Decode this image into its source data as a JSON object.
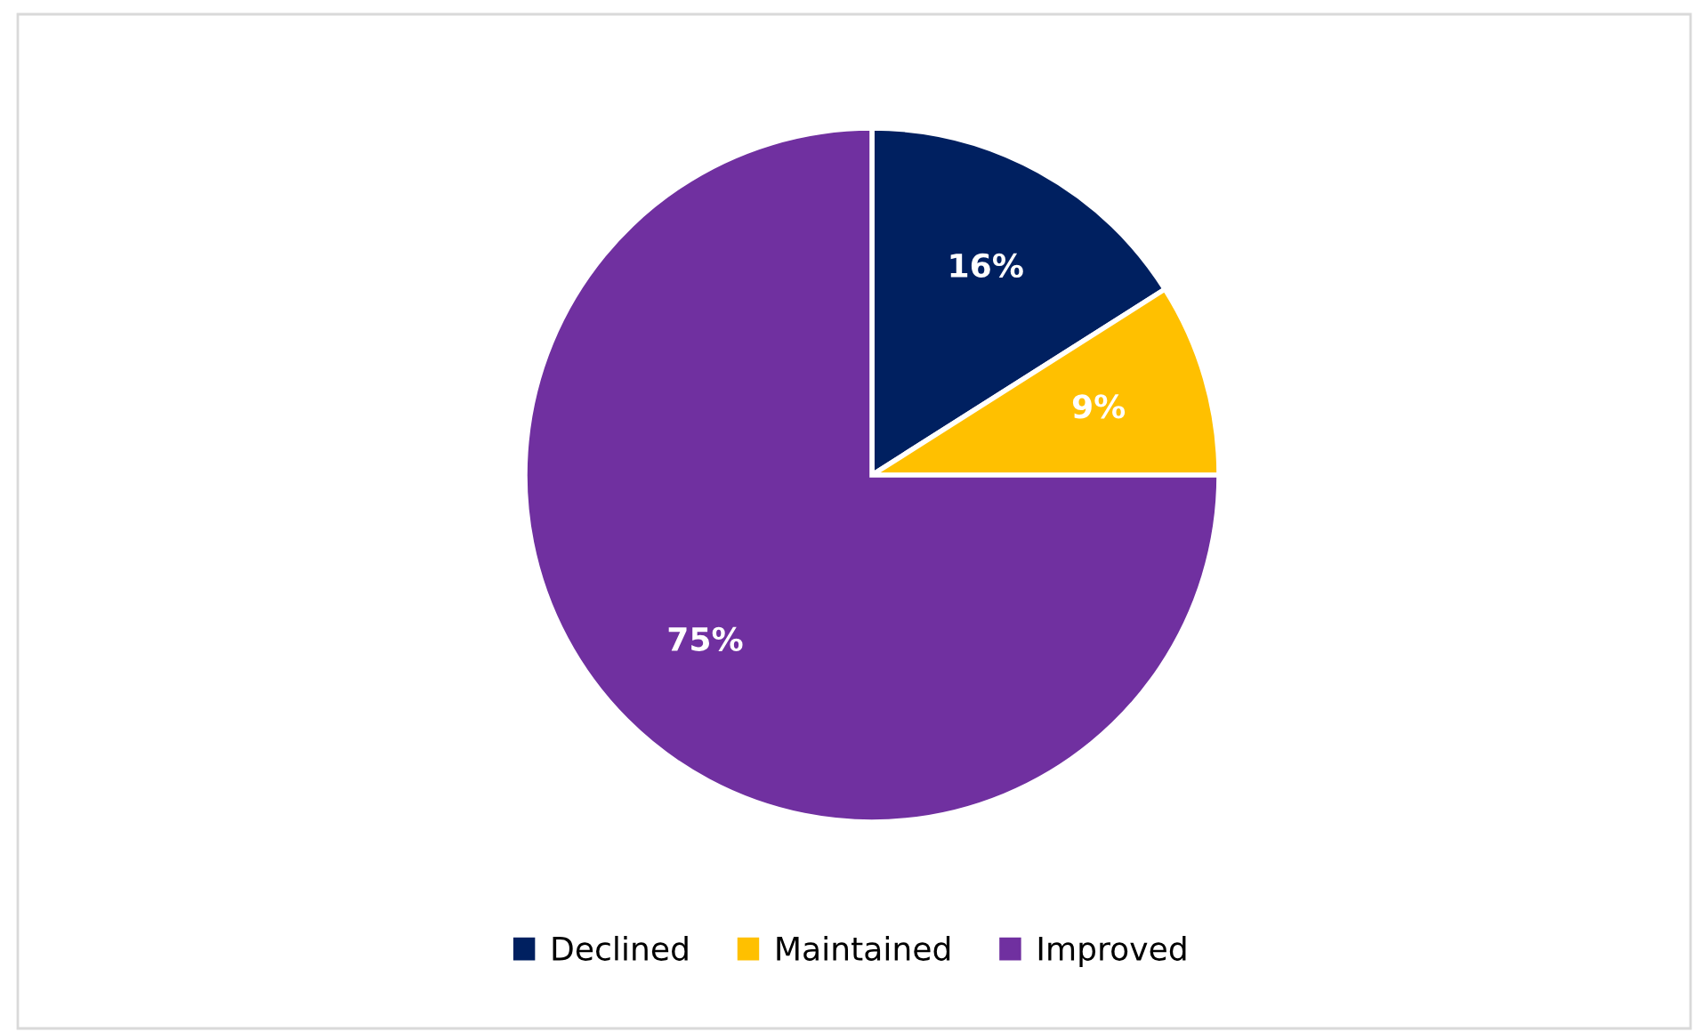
{
  "chart_data": {
    "type": "pie",
    "categories": [
      "Declined",
      "Maintained",
      "Improved"
    ],
    "values": [
      16,
      9,
      75
    ],
    "value_labels": [
      "16%",
      "9%",
      "75%"
    ],
    "colors": [
      "#002060",
      "#ffc000",
      "#7030a0"
    ],
    "legend": "bottom"
  }
}
